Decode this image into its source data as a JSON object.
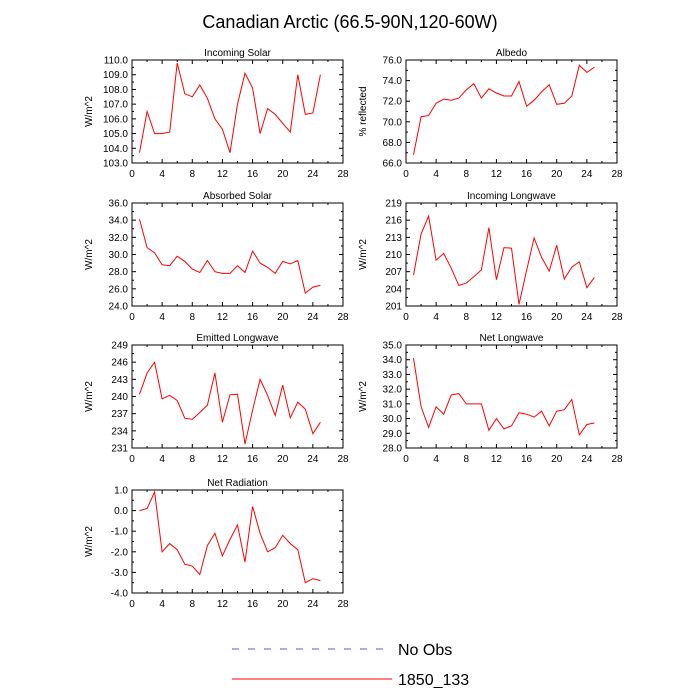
{
  "page": {
    "title": "Canadian Arctic (66.5-90N,120-60W)"
  },
  "legend": [
    {
      "label": "No Obs",
      "color": "#5b5bd6",
      "dash": true
    },
    {
      "label": "1850_133",
      "color": "#ff0000",
      "dash": false
    }
  ],
  "chart_data": [
    {
      "type": "line",
      "title": "Incoming Solar",
      "ylabel": "W/m^2",
      "xlim": [
        0,
        28
      ],
      "xticks": [
        0,
        4,
        8,
        12,
        16,
        20,
        24,
        28
      ],
      "ylim": [
        103.0,
        110.0
      ],
      "yticks": [
        103.0,
        104.0,
        105.0,
        106.0,
        107.0,
        108.0,
        109.0,
        110.0
      ],
      "ydecimals": 1,
      "series": [
        {
          "color": "#ff0000",
          "x": [
            1,
            2,
            3,
            4,
            5,
            6,
            7,
            8,
            9,
            10,
            11,
            12,
            13,
            14,
            15,
            16,
            17,
            18,
            19,
            20,
            21,
            22,
            23,
            24,
            25
          ],
          "values": [
            103.7,
            106.5,
            105.0,
            105.0,
            105.1,
            109.8,
            107.7,
            107.5,
            108.3,
            107.4,
            106.0,
            105.3,
            103.7,
            107.0,
            109.1,
            108.1,
            105.0,
            106.7,
            106.3,
            105.7,
            105.1,
            109.0,
            106.3,
            106.4,
            109.0
          ]
        }
      ]
    },
    {
      "type": "line",
      "title": "Albedo",
      "ylabel": "% reflected",
      "xlim": [
        0,
        28
      ],
      "xticks": [
        0,
        4,
        8,
        12,
        16,
        20,
        24,
        28
      ],
      "ylim": [
        66.0,
        76.0
      ],
      "yticks": [
        66.0,
        68.0,
        70.0,
        72.0,
        74.0,
        76.0
      ],
      "ydecimals": 1,
      "series": [
        {
          "color": "#ff0000",
          "x": [
            1,
            2,
            3,
            4,
            5,
            6,
            7,
            8,
            9,
            10,
            11,
            12,
            13,
            14,
            15,
            16,
            17,
            18,
            19,
            20,
            21,
            22,
            23,
            24,
            25
          ],
          "values": [
            66.8,
            70.5,
            70.6,
            71.8,
            72.2,
            72.1,
            72.3,
            73.1,
            73.7,
            72.3,
            73.2,
            72.8,
            72.5,
            72.5,
            73.9,
            71.5,
            72.1,
            72.9,
            73.6,
            71.7,
            71.8,
            72.5,
            75.5,
            74.8,
            75.3
          ]
        }
      ]
    },
    {
      "type": "line",
      "title": "Absorbed Solar",
      "ylabel": "W/m^2",
      "xlim": [
        0,
        28
      ],
      "xticks": [
        0,
        4,
        8,
        12,
        16,
        20,
        24,
        28
      ],
      "ylim": [
        24.0,
        36.0
      ],
      "yticks": [
        24.0,
        26.0,
        28.0,
        30.0,
        32.0,
        34.0,
        36.0
      ],
      "ydecimals": 1,
      "series": [
        {
          "color": "#ff0000",
          "x": [
            1,
            2,
            3,
            4,
            5,
            6,
            7,
            8,
            9,
            10,
            11,
            12,
            13,
            14,
            15,
            16,
            17,
            18,
            19,
            20,
            21,
            22,
            23,
            24,
            25
          ],
          "values": [
            34.1,
            30.8,
            30.2,
            28.8,
            28.7,
            29.8,
            29.2,
            28.3,
            27.9,
            29.3,
            28.0,
            27.8,
            27.8,
            28.7,
            27.9,
            30.4,
            29.0,
            28.5,
            27.8,
            29.2,
            28.9,
            29.3,
            25.5,
            26.2,
            26.4
          ]
        }
      ]
    },
    {
      "type": "line",
      "title": "Incoming Longwave",
      "ylabel": "W/m^2",
      "xlim": [
        0,
        28
      ],
      "xticks": [
        0,
        4,
        8,
        12,
        16,
        20,
        24,
        28
      ],
      "ylim": [
        201,
        219
      ],
      "yticks": [
        201,
        204,
        207,
        210,
        213,
        216,
        219
      ],
      "ydecimals": 0,
      "series": [
        {
          "color": "#ff0000",
          "x": [
            1,
            2,
            3,
            4,
            5,
            6,
            7,
            8,
            9,
            10,
            11,
            12,
            13,
            14,
            15,
            16,
            17,
            18,
            19,
            20,
            21,
            22,
            23,
            24,
            25
          ],
          "values": [
            206.4,
            213.6,
            216.7,
            209.0,
            210.2,
            207.6,
            204.6,
            205.0,
            206.1,
            207.3,
            214.7,
            205.6,
            211.2,
            211.1,
            201.3,
            207.2,
            212.9,
            209.5,
            207.1,
            211.6,
            205.7,
            207.8,
            208.7,
            204.2,
            206.0
          ]
        }
      ]
    },
    {
      "type": "line",
      "title": "Emitted Longwave",
      "ylabel": "W/m^2",
      "xlim": [
        0,
        28
      ],
      "xticks": [
        0,
        4,
        8,
        12,
        16,
        20,
        24,
        28
      ],
      "ylim": [
        231,
        249
      ],
      "yticks": [
        231,
        234,
        237,
        240,
        243,
        246,
        249
      ],
      "ydecimals": 0,
      "series": [
        {
          "color": "#ff0000",
          "x": [
            1,
            2,
            3,
            4,
            5,
            6,
            7,
            8,
            9,
            10,
            11,
            12,
            13,
            14,
            15,
            16,
            17,
            18,
            19,
            20,
            21,
            22,
            23,
            24,
            25
          ],
          "values": [
            240.4,
            244.1,
            246.0,
            239.6,
            240.2,
            239.3,
            236.2,
            236.0,
            237.2,
            238.5,
            244.1,
            235.5,
            240.3,
            240.4,
            231.7,
            237.6,
            243.0,
            240.2,
            236.7,
            242.0,
            236.3,
            239.0,
            237.8,
            233.5,
            235.5
          ]
        }
      ]
    },
    {
      "type": "line",
      "title": "Net Longwave",
      "ylabel": "W/m^2",
      "xlim": [
        0,
        28
      ],
      "xticks": [
        0,
        4,
        8,
        12,
        16,
        20,
        24,
        28
      ],
      "ylim": [
        28.0,
        35.0
      ],
      "yticks": [
        28.0,
        29.0,
        30.0,
        31.0,
        32.0,
        33.0,
        34.0,
        35.0
      ],
      "ydecimals": 1,
      "series": [
        {
          "color": "#ff0000",
          "x": [
            1,
            2,
            3,
            4,
            5,
            6,
            7,
            8,
            9,
            10,
            11,
            12,
            13,
            14,
            15,
            16,
            17,
            18,
            19,
            20,
            21,
            22,
            23,
            24,
            25
          ],
          "values": [
            34.1,
            30.8,
            29.4,
            30.8,
            30.3,
            31.6,
            31.7,
            31.0,
            31.0,
            31.0,
            29.2,
            30.0,
            29.3,
            29.5,
            30.4,
            30.3,
            30.1,
            30.5,
            29.5,
            30.5,
            30.6,
            31.3,
            28.9,
            29.6,
            29.7
          ]
        }
      ]
    },
    {
      "type": "line",
      "title": "Net Radiation",
      "ylabel": "W/m^2",
      "xlim": [
        0,
        28
      ],
      "xticks": [
        0,
        4,
        8,
        12,
        16,
        20,
        24,
        28
      ],
      "ylim": [
        -4.0,
        1.0
      ],
      "yticks": [
        -4.0,
        -3.0,
        -2.0,
        -1.0,
        0.0,
        1.0
      ],
      "ydecimals": 1,
      "series": [
        {
          "color": "#ff0000",
          "x": [
            1,
            2,
            3,
            4,
            5,
            6,
            7,
            8,
            9,
            10,
            11,
            12,
            13,
            14,
            15,
            16,
            17,
            18,
            19,
            20,
            21,
            22,
            23,
            24,
            25
          ],
          "values": [
            0.0,
            0.1,
            0.9,
            -2.0,
            -1.6,
            -1.9,
            -2.6,
            -2.7,
            -3.1,
            -1.7,
            -1.1,
            -2.2,
            -1.4,
            -0.7,
            -2.5,
            0.2,
            -1.1,
            -2.0,
            -1.8,
            -1.2,
            -1.6,
            -1.9,
            -3.5,
            -3.3,
            -3.4
          ]
        }
      ]
    }
  ]
}
